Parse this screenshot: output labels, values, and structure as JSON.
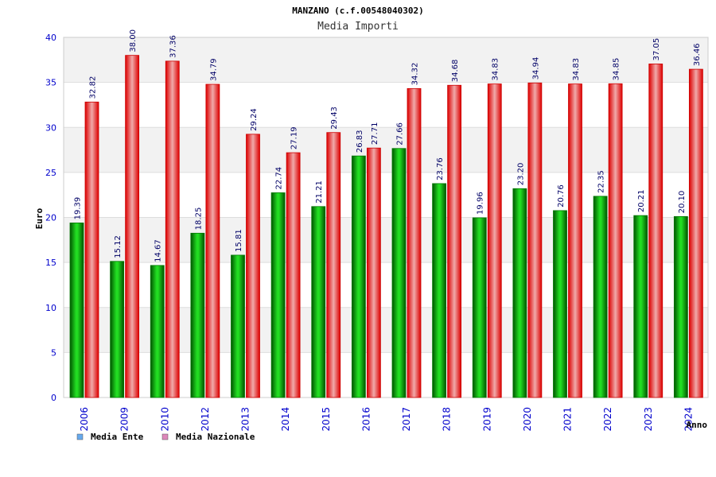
{
  "chart_data": {
    "type": "bar",
    "title": "MANZANO (c.f.00548040302)",
    "subtitle": "Media Importi",
    "ylabel": "Euro",
    "xlabel": "Anno",
    "ylim": [
      0,
      40
    ],
    "yticks": [
      0,
      5,
      10,
      15,
      20,
      25,
      30,
      35,
      40
    ],
    "ytick_labels": [
      "0",
      "5",
      "10",
      "15",
      "20",
      "25",
      "30",
      "35",
      "40"
    ],
    "grid": true,
    "legend_position": "bottom-left",
    "categories": [
      "2006",
      "2009",
      "2010",
      "2012",
      "2013",
      "2014",
      "2015",
      "2016",
      "2017",
      "2018",
      "2019",
      "2020",
      "2021",
      "2022",
      "2023",
      "2024"
    ],
    "series": [
      {
        "name": "Media Ente",
        "values": [
          19.39,
          15.12,
          14.67,
          18.25,
          15.81,
          22.74,
          21.21,
          26.83,
          27.66,
          23.76,
          19.96,
          23.2,
          20.76,
          22.35,
          20.21,
          20.1
        ],
        "labels": [
          "19.39",
          "15.12",
          "14.67",
          "18.25",
          "15.81",
          "22.74",
          "21.21",
          "26.83",
          "27.66",
          "23.76",
          "19.96",
          "23.20",
          "20.76",
          "22.35",
          "20.21",
          "20.10"
        ],
        "color": "#00cc00",
        "legend_color": "#66aaee"
      },
      {
        "name": "Media Nazionale",
        "values": [
          32.82,
          38.0,
          37.36,
          34.79,
          29.24,
          27.19,
          29.43,
          27.71,
          34.32,
          34.68,
          34.83,
          34.94,
          34.83,
          34.85,
          37.05,
          36.46
        ],
        "labels": [
          "32.82",
          "38.00",
          "37.36",
          "34.79",
          "29.24",
          "27.19",
          "29.43",
          "27.71",
          "34.32",
          "34.68",
          "34.83",
          "34.94",
          "34.83",
          "34.85",
          "37.05",
          "36.46"
        ],
        "color": "#ee1111",
        "legend_color": "#dd88bb"
      }
    ]
  }
}
